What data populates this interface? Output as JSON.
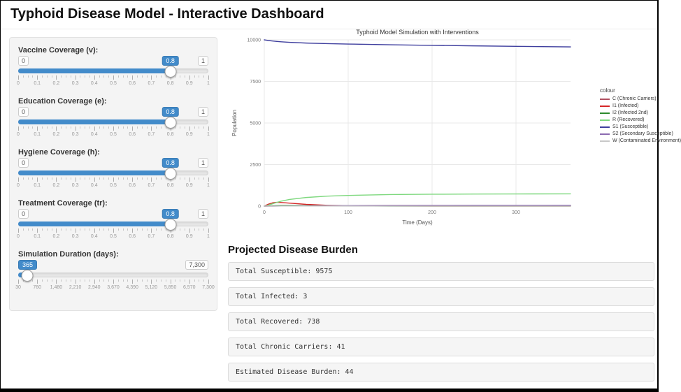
{
  "page": {
    "title": "Typhoid Disease Model - Interactive Dashboard"
  },
  "sidebar": {
    "sliders": [
      {
        "label": "Vaccine Coverage (v):",
        "min": "0",
        "max": "1",
        "value": "0.8",
        "percent": 80,
        "ticks": [
          "0",
          "0.1",
          "0.2",
          "0.3",
          "0.4",
          "0.5",
          "0.6",
          "0.7",
          "0.8",
          "0.9",
          "1"
        ]
      },
      {
        "label": "Education Coverage (e):",
        "min": "0",
        "max": "1",
        "value": "0.8",
        "percent": 80,
        "ticks": [
          "0",
          "0.1",
          "0.2",
          "0.3",
          "0.4",
          "0.5",
          "0.6",
          "0.7",
          "0.8",
          "0.9",
          "1"
        ]
      },
      {
        "label": "Hygiene Coverage (h):",
        "min": "0",
        "max": "1",
        "value": "0.8",
        "percent": 80,
        "ticks": [
          "0",
          "0.1",
          "0.2",
          "0.3",
          "0.4",
          "0.5",
          "0.6",
          "0.7",
          "0.8",
          "0.9",
          "1"
        ]
      },
      {
        "label": "Treatment Coverage (tr):",
        "min": "0",
        "max": "1",
        "value": "0.8",
        "percent": 80,
        "ticks": [
          "0",
          "0.1",
          "0.2",
          "0.3",
          "0.4",
          "0.5",
          "0.6",
          "0.7",
          "0.8",
          "0.9",
          "1"
        ]
      },
      {
        "label": "Simulation Duration (days):",
        "min": "30",
        "max": "7,300",
        "value": "365",
        "percent": 4.6,
        "ticks": [
          "30",
          "760",
          "1,480",
          "2,210",
          "2,940",
          "3,670",
          "4,390",
          "5,120",
          "5,850",
          "6,570",
          "7,300"
        ]
      }
    ]
  },
  "burden": {
    "heading": "Projected Disease Burden",
    "items": [
      "Total Susceptible: 9575",
      "Total Infected: 3",
      "Total Recovered: 738",
      "Total Chronic Carriers: 41",
      "Estimated Disease Burden: 44"
    ]
  },
  "chart_data": {
    "type": "line",
    "title": "Typhoid Model Simulation with Interventions",
    "xlabel": "Time (Days)",
    "ylabel": "Population",
    "xlim": [
      0,
      365
    ],
    "ylim": [
      0,
      10000
    ],
    "x_ticks": [
      0,
      100,
      200,
      300
    ],
    "y_ticks": [
      0,
      2500,
      5000,
      7500,
      10000
    ],
    "legend_title": "colour",
    "legend_position": "right",
    "grid": true,
    "x": [
      0,
      5,
      10,
      15,
      20,
      30,
      50,
      75,
      100,
      150,
      200,
      250,
      300,
      365
    ],
    "series": [
      {
        "name": "C (Chronic Carriers)",
        "color": "#b05060",
        "values": [
          0,
          2,
          5,
          8,
          11,
          16,
          24,
          30,
          34,
          38,
          40,
          41,
          41,
          41
        ]
      },
      {
        "name": "I1 (Infected)",
        "color": "#d62728",
        "values": [
          5,
          120,
          200,
          230,
          220,
          180,
          105,
          52,
          26,
          8,
          4,
          3,
          3,
          3
        ]
      },
      {
        "name": "I2 (Infected 2nd)",
        "color": "#2e8b2e",
        "values": [
          0,
          12,
          26,
          36,
          40,
          41,
          33,
          21,
          13,
          5,
          3,
          2,
          2,
          2
        ]
      },
      {
        "name": "R (Recovered)",
        "color": "#7ed87e",
        "values": [
          0,
          60,
          145,
          225,
          295,
          400,
          520,
          600,
          645,
          695,
          715,
          728,
          734,
          738
        ]
      },
      {
        "name": "S1 (Susceptible)",
        "color": "#3f3f9e",
        "values": [
          10000,
          9958,
          9928,
          9903,
          9882,
          9850,
          9806,
          9772,
          9746,
          9703,
          9668,
          9638,
          9608,
          9575
        ]
      },
      {
        "name": "S2 (Secondary Susceptible)",
        "color": "#8c6bb1",
        "values": [
          0,
          1,
          2,
          4,
          6,
          10,
          18,
          26,
          32,
          40,
          45,
          48,
          50,
          52
        ]
      },
      {
        "name": "W (Contaminated Environment)",
        "color": "#c8c8c8",
        "values": [
          0,
          3,
          6,
          8,
          9,
          9,
          8,
          6,
          5,
          3,
          2,
          2,
          2,
          2
        ]
      }
    ]
  }
}
